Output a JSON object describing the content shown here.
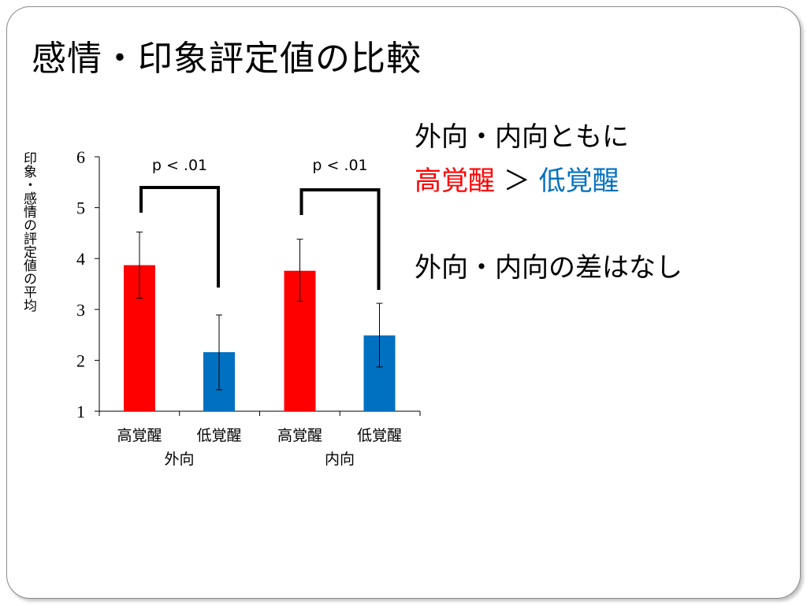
{
  "slide": {
    "title": "感情・印象評定値の比較"
  },
  "chart_data": {
    "type": "bar",
    "ylabel": "印象・感情の評定値の平均",
    "ylim": [
      1,
      6
    ],
    "yticks": [
      "1",
      "2",
      "3",
      "4",
      "5",
      "6"
    ],
    "groups": [
      {
        "name": "外向",
        "bars": [
          {
            "label": "高覚醒",
            "value": 3.87,
            "err_low": 3.22,
            "err_high": 4.52,
            "color": "#ff0000"
          },
          {
            "label": "低覚醒",
            "value": 2.16,
            "err_low": 1.42,
            "err_high": 2.89,
            "color": "#0070c0"
          }
        ],
        "significance": "p < .01"
      },
      {
        "name": "内向",
        "bars": [
          {
            "label": "高覚醒",
            "value": 3.76,
            "err_low": 3.16,
            "err_high": 4.38,
            "color": "#ff0000"
          },
          {
            "label": "低覚醒",
            "value": 2.49,
            "err_low": 1.87,
            "err_high": 3.12,
            "color": "#0070c0"
          }
        ],
        "significance": "p < .01"
      }
    ]
  },
  "annotations": {
    "line1": "外向・内向ともに",
    "high": "高覚醒",
    "gt": " ＞ ",
    "low": "低覚醒",
    "line3": "外向・内向の差はなし"
  },
  "colors": {
    "high_arousal": "#ff0000",
    "low_arousal": "#0070c0"
  }
}
